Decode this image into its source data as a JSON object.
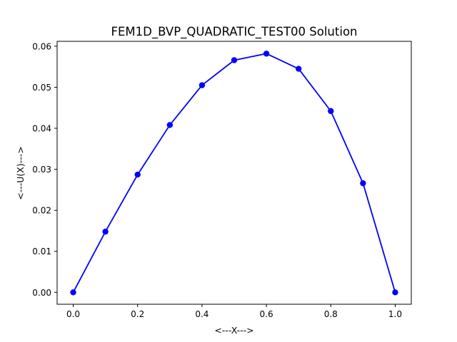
{
  "chart_data": {
    "type": "line",
    "title": "FEM1D_BVP_QUADRATIC_TEST00 Solution",
    "xlabel": "<---X--->",
    "ylabel": "<---U(X)--->",
    "xlim": [
      -0.05,
      1.05
    ],
    "ylim": [
      -0.0029,
      0.0612
    ],
    "x_ticks": [
      0.0,
      0.2,
      0.4,
      0.6,
      0.8,
      1.0
    ],
    "x_tick_labels": [
      "0.0",
      "0.2",
      "0.4",
      "0.6",
      "0.8",
      "1.0"
    ],
    "y_ticks": [
      0.0,
      0.01,
      0.02,
      0.03,
      0.04,
      0.05,
      0.06
    ],
    "y_tick_labels": [
      "0.00",
      "0.01",
      "0.02",
      "0.03",
      "0.04",
      "0.05",
      "0.06"
    ],
    "grid": false,
    "series": [
      {
        "color": "#0000ff",
        "marker": "circle",
        "x": [
          0.0,
          0.1,
          0.2,
          0.3,
          0.4,
          0.5,
          0.6,
          0.7,
          0.8,
          0.9,
          1.0
        ],
        "y": [
          0.0,
          0.0148,
          0.0287,
          0.0408,
          0.0505,
          0.0566,
          0.0582,
          0.0545,
          0.0442,
          0.0266,
          0.0
        ]
      }
    ]
  }
}
